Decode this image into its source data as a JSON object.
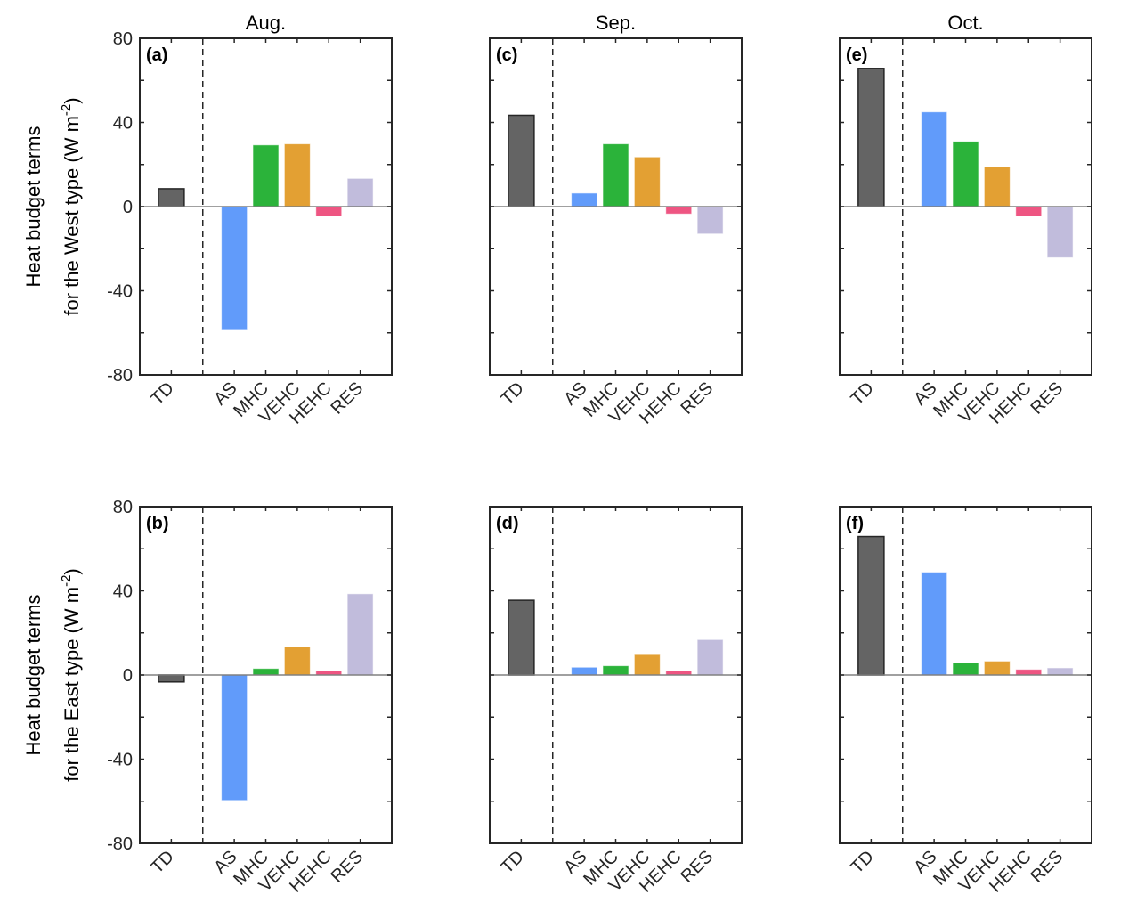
{
  "chart_data": {
    "type": "bar",
    "categories": [
      "TD",
      "AS",
      "MHC",
      "VEHC",
      "HEHC",
      "RES"
    ],
    "colors": {
      "TD": "#646464",
      "AS": "#619BFA",
      "MHC": "#2BB33A",
      "VEHC": "#E3A033",
      "HEHC": "#EE5582",
      "RES": "#C1BCDC"
    },
    "ylim": [
      -80,
      80
    ],
    "yticks": [
      -80,
      -40,
      0,
      40,
      80
    ],
    "ytick_labels": [
      "-80",
      "-40",
      "0",
      "40",
      "80"
    ],
    "grid": false,
    "column_titles": [
      "Aug.",
      "Sep.",
      "Oct."
    ],
    "row_ylabels": [
      {
        "line1": "Heat budget terms",
        "line2_prefix": "for the West type (W m",
        "sup": "-2",
        "suffix": ")"
      },
      {
        "line1": "Heat budget terms",
        "line2_prefix": "for the East type (W m",
        "sup": "-2",
        "suffix": ")"
      }
    ],
    "panels": [
      {
        "tag": "(a)",
        "row": 0,
        "col": 0,
        "month": "Aug.",
        "type": "West",
        "values": [
          8.5,
          -58.8,
          29.3,
          29.8,
          -4.5,
          13.4
        ]
      },
      {
        "tag": "(c)",
        "row": 0,
        "col": 1,
        "month": "Sep.",
        "type": "West",
        "values": [
          43.4,
          6.4,
          29.8,
          23.6,
          -3.5,
          -13.0
        ]
      },
      {
        "tag": "(e)",
        "row": 0,
        "col": 2,
        "month": "Oct.",
        "type": "West",
        "values": [
          65.7,
          45.0,
          31.0,
          18.9,
          -4.5,
          -24.3
        ]
      },
      {
        "tag": "(b)",
        "row": 1,
        "col": 0,
        "month": "Aug.",
        "type": "East",
        "values": [
          -3.3,
          -59.6,
          3.1,
          13.4,
          2.0,
          38.6
        ]
      },
      {
        "tag": "(d)",
        "row": 1,
        "col": 1,
        "month": "Sep.",
        "type": "East",
        "values": [
          35.5,
          3.7,
          4.4,
          10.1,
          2.0,
          16.8
        ]
      },
      {
        "tag": "(f)",
        "row": 1,
        "col": 2,
        "month": "Oct.",
        "type": "East",
        "values": [
          65.8,
          48.9,
          5.9,
          6.6,
          2.7,
          3.4
        ]
      }
    ],
    "annotations": [
      "vertical dashed line separating TD from other terms",
      "horizontal zero line"
    ],
    "xlabel": "",
    "title": ""
  }
}
